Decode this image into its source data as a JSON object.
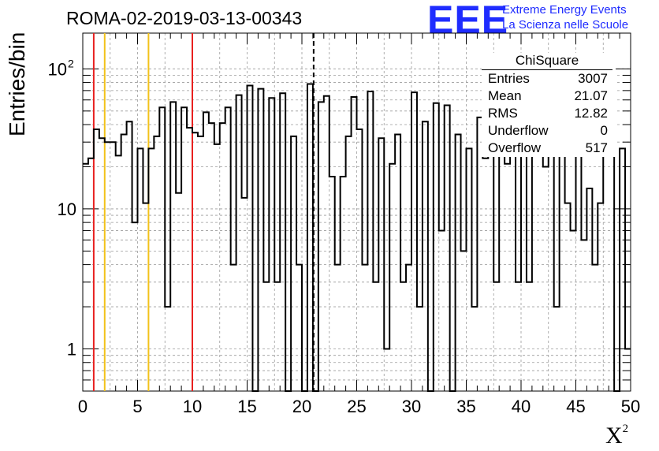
{
  "title": "ROMA-02-2019-03-13-00343",
  "logo": {
    "mark": "EEE",
    "line1": "Extreme Energy Events",
    "line2": "La Scienza nelle Scuole",
    "color": "#1f2cff"
  },
  "stats": {
    "name": "ChiSquare",
    "rows": [
      {
        "label": "Entries",
        "value": "3007"
      },
      {
        "label": "Mean",
        "value": "21.07"
      },
      {
        "label": "RMS",
        "value": "12.82"
      },
      {
        "label": "Underflow",
        "value": "0"
      },
      {
        "label": "Overflow",
        "value": "517"
      }
    ]
  },
  "chart_data": {
    "type": "histogram",
    "title": "ROMA-02-2019-03-13-00343",
    "xlabel": "X",
    "xlabel_sup": "2",
    "ylabel": "Entries/bin",
    "xlim": [
      0,
      50
    ],
    "ylim": [
      0.5,
      180
    ],
    "yscale": "log",
    "grid": true,
    "bin_width": 0.5,
    "x_ticks": [
      "0",
      "5",
      "10",
      "15",
      "20",
      "25",
      "30",
      "35",
      "40",
      "45",
      "50"
    ],
    "y_ticks": [
      {
        "value": 1,
        "label": "1"
      },
      {
        "value": 10,
        "label": "10"
      },
      {
        "value": 100,
        "label": "10",
        "exponent": "2"
      }
    ],
    "bin_values": [
      21,
      23,
      37,
      32,
      30,
      30,
      24,
      34,
      42,
      8,
      27,
      11,
      27,
      33,
      53,
      2,
      58,
      13,
      53,
      38,
      35,
      33,
      49,
      41,
      29,
      41,
      53,
      4,
      65,
      12,
      76,
      0.5,
      72,
      3,
      62,
      3,
      67,
      0.5,
      33,
      4,
      0.5,
      78,
      0.5,
      58,
      64,
      17,
      4,
      17,
      33,
      63,
      37,
      4,
      69,
      3,
      32,
      1,
      21,
      34,
      3,
      4,
      68,
      2,
      42,
      0.5,
      57,
      7,
      55,
      0.5,
      34,
      5,
      27,
      2,
      45,
      23,
      36,
      3,
      41,
      21,
      24,
      3,
      34,
      3,
      28,
      45,
      20,
      31,
      2,
      27,
      11,
      7,
      28,
      6,
      14,
      4,
      11,
      24,
      29,
      0.5,
      27,
      1
    ],
    "vlines": [
      {
        "x": 1,
        "color": "#e8201f",
        "style": "solid"
      },
      {
        "x": 2,
        "color": "#f2c21a",
        "style": "solid"
      },
      {
        "x": 6,
        "color": "#f2c21a",
        "style": "solid"
      },
      {
        "x": 10,
        "color": "#e8201f",
        "style": "solid"
      },
      {
        "x": 21.07,
        "color": "#000000",
        "style": "dashed"
      }
    ]
  }
}
